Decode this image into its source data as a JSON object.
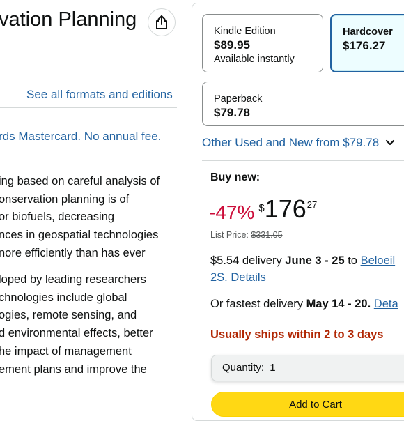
{
  "header": {
    "title": "vation Planning",
    "share_icon": "share-icon"
  },
  "formats_link": "See all formats and editions",
  "promo_text": "rds Mastercard. No annual fee.",
  "description": {
    "para1": [
      "ing based on careful analysis of",
      "onservation planning is of",
      "or biofuels, decreasing",
      "nces in geospatial technologies",
      "nore efficiently than has ever"
    ],
    "para2": [
      "loped by leading researchers",
      "chnologies include global",
      "ogies, remote sensing, and",
      "d environmental effects, better",
      "he impact of management",
      "ement plans and improve the"
    ]
  },
  "formats": [
    {
      "name": "Kindle Edition",
      "price": "$89.95",
      "sub": "Available instantly"
    },
    {
      "name": "Hardcover",
      "price": "$176.27",
      "sub": ""
    },
    {
      "name": "Paperback",
      "price": "$79.78",
      "sub": ""
    }
  ],
  "other_used": {
    "label": "Other Used and New from $79.78"
  },
  "buy_box": {
    "buy_new_label": "Buy new:",
    "discount": "-47%",
    "currency": "$",
    "price_whole": "176",
    "price_fraction": "27",
    "list_price_label": "List Price:",
    "list_price_value": "$331.05",
    "delivery_cost": "$5.54 delivery",
    "delivery_dates": "June 3 - 25",
    "delivery_to": "to",
    "location_line1": "Beloeil",
    "location_line2": "2S.",
    "details_link": "Details",
    "fastest_label": "Or fastest delivery",
    "fastest_dates": "May 14 - 20.",
    "fastest_details": "Deta",
    "ships_text": "Usually ships within 2 to 3 days",
    "quantity_label": "Quantity:",
    "quantity_value": "1",
    "add_to_cart": "Add to Cart"
  }
}
